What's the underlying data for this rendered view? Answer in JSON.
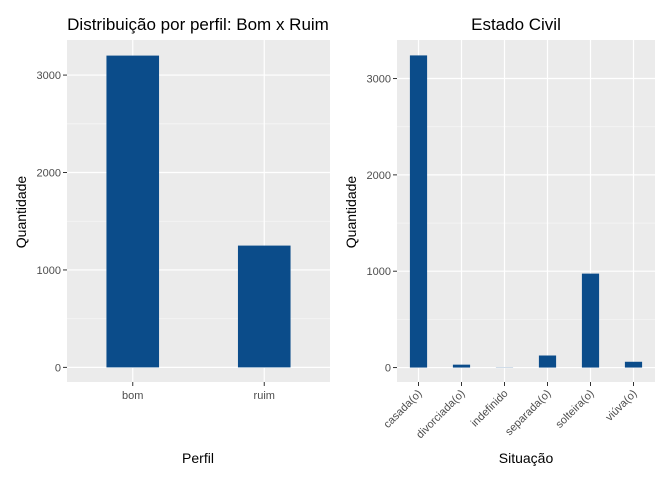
{
  "chart_data": [
    {
      "type": "bar",
      "title": "Distribuição por perfil: Bom x Ruim",
      "xlabel": "Perfil",
      "ylabel": "Quantidade",
      "categories": [
        "bom",
        "ruim"
      ],
      "values": [
        3200,
        1250
      ],
      "ylim": [
        -150,
        3360
      ],
      "yticks": [
        0,
        1000,
        2000,
        3000
      ],
      "grid": true,
      "legend": "none",
      "bar_color": "#0b4c8a",
      "panel_color": "#ebebeb"
    },
    {
      "type": "bar",
      "title": "Estado Civil",
      "xlabel": "Situação",
      "ylabel": "Quantidade",
      "categories": [
        "casada(o)",
        "divorciada(o)",
        "indefinido",
        "separada(o)",
        "solteira(o)",
        "viúva(o)"
      ],
      "values": [
        3240,
        30,
        2,
        125,
        975,
        60
      ],
      "ylim": [
        -150,
        3400
      ],
      "yticks": [
        0,
        1000,
        2000,
        3000
      ],
      "grid": true,
      "legend": "none",
      "bar_color": "#0b4c8a",
      "panel_color": "#ebebeb"
    }
  ]
}
